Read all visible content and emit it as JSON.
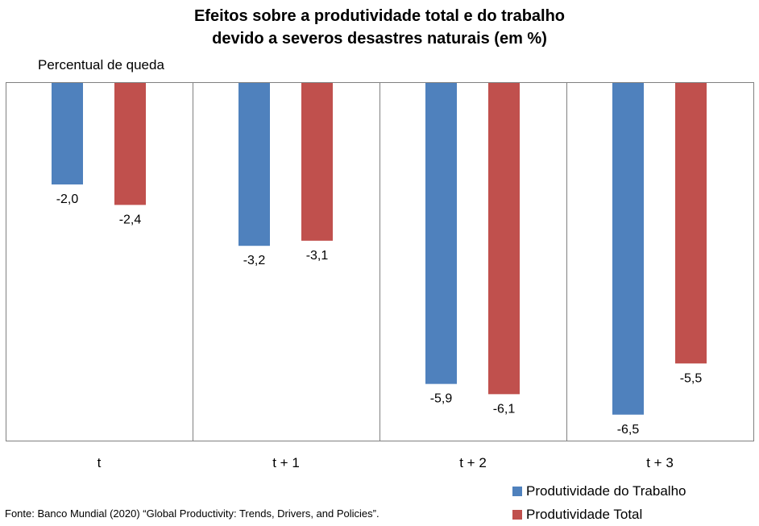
{
  "title": {
    "line1": "Efeitos sobre a produtividade total e do trabalho",
    "line2": "devido a severos desastres naturais (em %)"
  },
  "ylabel": "Percentual de queda",
  "source": "Fonte: Banco Mundial (2020) “Global Productivity: Trends, Drivers, and Policies”.",
  "legend": [
    {
      "label": "Produtividade do Trabalho",
      "color": "#4F81BD"
    },
    {
      "label": "Produtividade Total",
      "color": "#C0504D"
    }
  ],
  "chart_data": {
    "type": "bar",
    "orientation": "vertical-negative",
    "title": "Efeitos sobre a produtividade total e do trabalho devido a severos desastres naturais (em %)",
    "ylabel": "Percentual de queda",
    "categories": [
      "t",
      "t + 1",
      "t + 2",
      "t + 3"
    ],
    "series": [
      {
        "name": "Produtividade do Trabalho",
        "color": "#4F81BD",
        "values": [
          -2.0,
          -3.2,
          -5.9,
          -6.5
        ],
        "labels": [
          "-2,0",
          "-3,2",
          "-5,9",
          "-6,5"
        ]
      },
      {
        "name": "Produtividade Total",
        "color": "#C0504D",
        "values": [
          -2.4,
          -3.1,
          -6.1,
          -5.5
        ],
        "labels": [
          "-2,4",
          "-3,1",
          "-6,1",
          "-5,5"
        ]
      }
    ],
    "ylim": [
      -7,
      0
    ],
    "legend_position": "bottom-right",
    "grid": false
  }
}
